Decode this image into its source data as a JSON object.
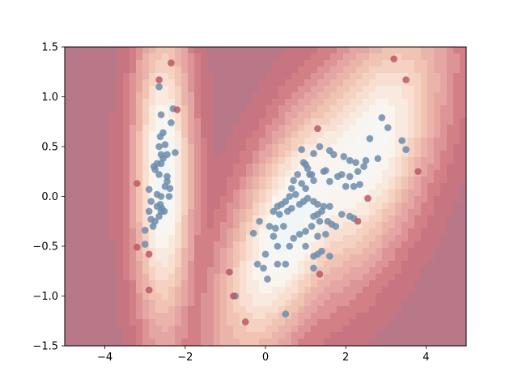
{
  "chart_data": {
    "type": "scatter",
    "title": "",
    "xlabel": "",
    "ylabel": "",
    "xlim": [
      -5,
      5
    ],
    "ylim": [
      -1.5,
      1.5
    ],
    "x_ticks": [
      -4,
      -2,
      0,
      2,
      4
    ],
    "x_tick_labels": [
      "−4",
      "−2",
      "0",
      "2",
      "4"
    ],
    "y_ticks": [
      -1.5,
      -1.0,
      -0.5,
      0.0,
      0.5,
      1.0,
      1.5
    ],
    "y_tick_labels": [
      "−1.5",
      "−1.0",
      "−0.5",
      "0.0",
      "0.5",
      "1.0",
      "1.5"
    ],
    "grid": false,
    "background": "filled contour of a decision/score function (light inside the clusters, dark red far away)",
    "series": [
      {
        "color": "#6f8caa",
        "points": [
          [
            -2.65,
            1.1
          ],
          [
            -2.6,
            0.82
          ],
          [
            -2.62,
            0.6
          ],
          [
            -2.55,
            0.64
          ],
          [
            -2.35,
            0.74
          ],
          [
            -2.3,
            0.88
          ],
          [
            -2.65,
            0.5
          ],
          [
            -2.6,
            0.42
          ],
          [
            -2.55,
            0.38
          ],
          [
            -2.5,
            0.52
          ],
          [
            -2.45,
            0.42
          ],
          [
            -2.25,
            0.44
          ],
          [
            -2.78,
            0.3
          ],
          [
            -2.7,
            0.33
          ],
          [
            -2.75,
            0.27
          ],
          [
            -2.6,
            0.33
          ],
          [
            -2.9,
            0.07
          ],
          [
            -2.65,
            0.22
          ],
          [
            -2.45,
            0.2
          ],
          [
            -2.45,
            0.15
          ],
          [
            -2.5,
            0.1
          ],
          [
            -2.38,
            0.08
          ],
          [
            -2.4,
            0.0
          ],
          [
            -2.7,
            0.02
          ],
          [
            -2.6,
            0.0
          ],
          [
            -2.85,
            -0.05
          ],
          [
            -2.7,
            -0.1
          ],
          [
            -2.58,
            -0.12
          ],
          [
            -2.6,
            -0.15
          ],
          [
            -2.65,
            -0.2
          ],
          [
            -2.75,
            -0.25
          ],
          [
            -2.85,
            -0.23
          ],
          [
            -2.9,
            -0.15
          ],
          [
            -2.8,
            -0.3
          ],
          [
            -3.0,
            -0.34
          ],
          [
            -3.0,
            -0.48
          ],
          [
            -2.62,
            -0.08
          ],
          [
            -2.52,
            -0.15
          ],
          [
            1.6,
            0.46
          ],
          [
            1.7,
            0.42
          ],
          [
            1.95,
            0.4
          ],
          [
            2.1,
            0.36
          ],
          [
            2.25,
            0.34
          ],
          [
            2.45,
            0.3
          ],
          [
            2.6,
            0.58
          ],
          [
            2.9,
            0.79
          ],
          [
            3.05,
            0.69
          ],
          [
            3.4,
            0.56
          ],
          [
            3.5,
            0.47
          ],
          [
            2.8,
            0.38
          ],
          [
            2.5,
            0.36
          ],
          [
            2.3,
            0.25
          ],
          [
            2.1,
            0.2
          ],
          [
            1.9,
            0.22
          ],
          [
            1.8,
            0.2
          ],
          [
            1.6,
            0.15
          ],
          [
            2.0,
            0.1
          ],
          [
            2.2,
            0.1
          ],
          [
            2.35,
            0.12
          ],
          [
            1.5,
            0.26
          ],
          [
            1.45,
            0.25
          ],
          [
            1.35,
            0.5
          ],
          [
            1.2,
            0.43
          ],
          [
            0.9,
            0.47
          ],
          [
            0.95,
            0.34
          ],
          [
            1.0,
            0.32
          ],
          [
            1.05,
            0.28
          ],
          [
            1.1,
            0.22
          ],
          [
            0.8,
            0.22
          ],
          [
            0.7,
            0.16
          ],
          [
            0.65,
            0.08
          ],
          [
            0.9,
            0.13
          ],
          [
            1.0,
            0.08
          ],
          [
            1.2,
            0.16
          ],
          [
            1.15,
            0.22
          ],
          [
            0.75,
            0.02
          ],
          [
            0.6,
            0.0
          ],
          [
            0.5,
            -0.05
          ],
          [
            0.4,
            -0.08
          ],
          [
            0.3,
            -0.1
          ],
          [
            0.2,
            -0.15
          ],
          [
            0.35,
            -0.18
          ],
          [
            0.55,
            -0.15
          ],
          [
            0.65,
            -0.12
          ],
          [
            0.85,
            -0.08
          ],
          [
            0.95,
            -0.05
          ],
          [
            1.05,
            -0.02
          ],
          [
            1.2,
            -0.05
          ],
          [
            1.3,
            -0.08
          ],
          [
            1.45,
            -0.1
          ],
          [
            1.6,
            -0.1
          ],
          [
            1.4,
            -0.15
          ],
          [
            1.3,
            -0.18
          ],
          [
            1.2,
            -0.2
          ],
          [
            1.35,
            -0.25
          ],
          [
            1.55,
            -0.25
          ],
          [
            1.65,
            -0.28
          ],
          [
            1.9,
            -0.18
          ],
          [
            2.1,
            -0.2
          ],
          [
            2.2,
            -0.22
          ],
          [
            1.5,
            -0.38
          ],
          [
            1.3,
            -0.4
          ],
          [
            1.15,
            -0.3
          ],
          [
            1.0,
            -0.35
          ],
          [
            0.85,
            -0.38
          ],
          [
            0.7,
            -0.42
          ],
          [
            0.6,
            -0.5
          ],
          [
            0.45,
            -0.3
          ],
          [
            0.25,
            -0.32
          ],
          [
            0.1,
            -0.3
          ],
          [
            -0.15,
            -0.25
          ],
          [
            -0.3,
            -0.37
          ],
          [
            0.2,
            -0.4
          ],
          [
            0.3,
            -0.5
          ],
          [
            0.0,
            -0.58
          ],
          [
            -0.2,
            -0.68
          ],
          [
            -0.05,
            -0.72
          ],
          [
            0.3,
            -0.68
          ],
          [
            0.5,
            -0.68
          ],
          [
            1.0,
            -0.5
          ],
          [
            1.2,
            -0.6
          ],
          [
            1.3,
            -0.58
          ],
          [
            1.4,
            -0.55
          ],
          [
            1.6,
            -0.6
          ],
          [
            1.2,
            -0.72
          ],
          [
            0.05,
            -0.83
          ],
          [
            -0.75,
            -1.0
          ],
          [
            0.5,
            -1.18
          ],
          [
            1.75,
            -0.3
          ]
        ]
      },
      {
        "color": "#b85a66",
        "points": [
          [
            -2.35,
            1.34
          ],
          [
            -2.65,
            1.17
          ],
          [
            -2.2,
            0.87
          ],
          [
            -3.2,
            0.13
          ],
          [
            -3.2,
            -0.51
          ],
          [
            -2.9,
            -0.58
          ],
          [
            -2.9,
            -0.94
          ],
          [
            -0.9,
            -0.76
          ],
          [
            -0.8,
            -1.0
          ],
          [
            -0.5,
            -1.26
          ],
          [
            1.3,
            0.68
          ],
          [
            1.35,
            -0.78
          ],
          [
            2.3,
            -0.25
          ],
          [
            2.55,
            -0.02
          ],
          [
            3.2,
            1.38
          ],
          [
            3.5,
            1.17
          ],
          [
            3.8,
            0.25
          ]
        ]
      }
    ]
  }
}
